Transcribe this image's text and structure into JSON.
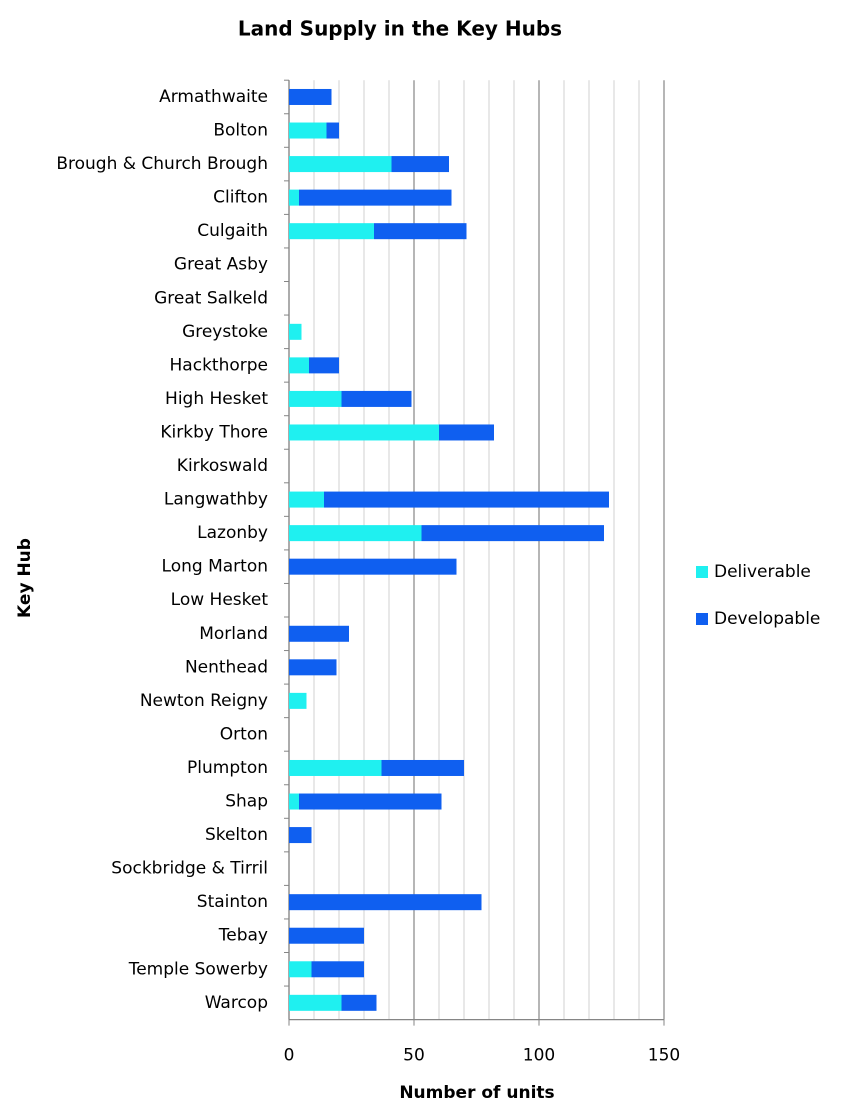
{
  "chart_data": {
    "type": "stacked-bar",
    "orientation": "horizontal",
    "title": "Land Supply in the Key Hubs",
    "x_label": "Number of units",
    "y_label": "Key Hub",
    "categories": [
      "Armathwaite",
      "Bolton",
      "Brough & Church Brough",
      "Clifton",
      "Culgaith",
      "Great Asby",
      "Great Salkeld",
      "Greystoke",
      "Hackthorpe",
      "High Hesket",
      "Kirkby Thore",
      "Kirkoswald",
      "Langwathby",
      "Lazonby",
      "Long Marton",
      "Low Hesket",
      "Morland",
      "Nenthead",
      "Newton Reigny",
      "Orton",
      "Plumpton",
      "Shap",
      "Skelton",
      "Sockbridge & Tirril",
      "Stainton",
      "Tebay",
      "Temple Sowerby",
      "Warcop"
    ],
    "series": [
      {
        "name": "Deliverable",
        "color": "#1ff0f0",
        "values": [
          0,
          15,
          41,
          4,
          34,
          0,
          0,
          5,
          8,
          21,
          60,
          0,
          14,
          53,
          0,
          0,
          0,
          0,
          7,
          0,
          37,
          4,
          0,
          0,
          0,
          0,
          9,
          21
        ]
      },
      {
        "name": "Developable",
        "color": "#0f5ff0",
        "values": [
          17,
          5,
          23,
          61,
          37,
          0,
          0,
          0,
          12,
          28,
          22,
          0,
          114,
          73,
          67,
          0,
          24,
          19,
          0,
          0,
          33,
          57,
          9,
          0,
          77,
          30,
          21,
          14
        ]
      }
    ],
    "xlim": [
      0,
      150
    ],
    "xticks": [
      0,
      50,
      100,
      150
    ],
    "grid": true,
    "legend": "right"
  }
}
